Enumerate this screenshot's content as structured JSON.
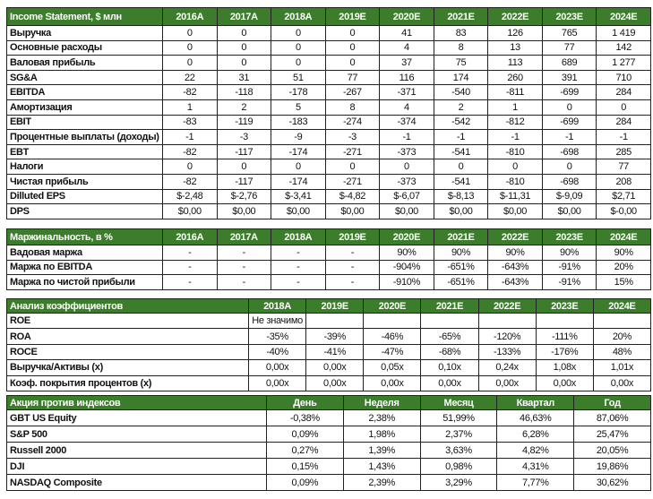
{
  "accent_color": "#3b7d2a",
  "tables": [
    {
      "id": "t1",
      "name": "income-statement-table",
      "label_width": 174,
      "headers": [
        "Income Statement, $ млн",
        "2016A",
        "2017A",
        "2018A",
        "2019E",
        "2020E",
        "2021E",
        "2022E",
        "2023E",
        "2024E"
      ],
      "rows": [
        [
          "Выручка",
          "0",
          "0",
          "0",
          "0",
          "41",
          "83",
          "126",
          "765",
          "1 419"
        ],
        [
          "Основные расходы",
          "0",
          "0",
          "0",
          "0",
          "4",
          "8",
          "13",
          "77",
          "142"
        ],
        [
          "Валовая прибыль",
          "0",
          "0",
          "0",
          "0",
          "37",
          "75",
          "113",
          "689",
          "1 277"
        ],
        [
          "SG&A",
          "22",
          "31",
          "51",
          "77",
          "116",
          "174",
          "260",
          "391",
          "710"
        ],
        [
          "EBITDA",
          "-82",
          "-118",
          "-178",
          "-267",
          "-371",
          "-540",
          "-811",
          "-699",
          "284"
        ],
        [
          "Амортизация",
          "1",
          "2",
          "5",
          "8",
          "4",
          "2",
          "1",
          "0",
          "0"
        ],
        [
          "EBIT",
          "-83",
          "-119",
          "-183",
          "-274",
          "-374",
          "-542",
          "-812",
          "-699",
          "284"
        ],
        [
          "Процентные выплаты (доходы)",
          "-1",
          "-3",
          "-9",
          "-3",
          "-1",
          "-1",
          "-1",
          "-1",
          "-1"
        ],
        [
          "EBT",
          "-82",
          "-117",
          "-174",
          "-271",
          "-373",
          "-541",
          "-810",
          "-698",
          "285"
        ],
        [
          "Налоги",
          "0",
          "0",
          "0",
          "0",
          "0",
          "0",
          "0",
          "0",
          "77"
        ],
        [
          "Чистая прибыль",
          "-82",
          "-117",
          "-174",
          "-271",
          "-373",
          "-541",
          "-810",
          "-698",
          "208"
        ],
        [
          "Dilluted EPS",
          "$-2,48",
          "$-2,76",
          "$-3,41",
          "$-4,82",
          "$-6,07",
          "$-8,13",
          "$-11,31",
          "$-9,09",
          "$2,71"
        ],
        [
          "DPS",
          "$0,00",
          "$0,00",
          "$0,00",
          "$0,00",
          "$0,00",
          "$0,00",
          "$0,00",
          "$0,00",
          "$-0,00"
        ]
      ]
    },
    {
      "id": "t2",
      "name": "margins-table",
      "label_width": 174,
      "headers": [
        "Маржинальность, в %",
        "2016A",
        "2017A",
        "2018A",
        "2019E",
        "2020E",
        "2021E",
        "2022E",
        "2023E",
        "2024E"
      ],
      "rows": [
        [
          "Вадовая маржа",
          "-",
          "-",
          "-",
          "-",
          "90%",
          "90%",
          "90%",
          "90%",
          "90%"
        ],
        [
          "Маржа по EBITDA",
          "-",
          "-",
          "-",
          "-",
          "-904%",
          "-651%",
          "-643%",
          "-91%",
          "20%"
        ],
        [
          "Маржа по чистой прибыли",
          "-",
          "-",
          "-",
          "-",
          "-910%",
          "-651%",
          "-643%",
          "-91%",
          "15%"
        ]
      ]
    },
    {
      "id": "t3",
      "name": "ratios-table",
      "label_width": 270,
      "headers": [
        "Анализ коэффициентов",
        "2018A",
        "2019E",
        "2020E",
        "2021E",
        "2022E",
        "2023E",
        "2024E"
      ],
      "rows": [
        [
          "ROE",
          "Не значимо",
          "",
          "",
          "",
          "",
          "",
          ""
        ],
        [
          "ROA",
          "-35%",
          "-39%",
          "-46%",
          "-65%",
          "-120%",
          "-111%",
          "20%"
        ],
        [
          "ROCE",
          "-40%",
          "-41%",
          "-47%",
          "-68%",
          "-133%",
          "-176%",
          "48%"
        ],
        [
          "Выручка/Активы (x)",
          "0,00x",
          "0,00x",
          "0,05x",
          "0,10x",
          "0,24x",
          "1,08x",
          "1,01x"
        ],
        [
          "Коэф. покрытия процентов (x)",
          "0,00x",
          "0,00x",
          "0,00x",
          "0,00x",
          "0,00x",
          "0,00x",
          "0,00x"
        ]
      ]
    },
    {
      "id": "t4",
      "name": "stock-vs-indices-table",
      "label_width": 290,
      "headers": [
        "Акция против индексов",
        "День",
        "Неделя",
        "Месяц",
        "Квартал",
        "Год"
      ],
      "rows": [
        [
          "GBT US Equity",
          "-0,38%",
          "2,38%",
          "51,99%",
          "46,63%",
          "87,06%"
        ],
        [
          "S&P 500",
          "0,09%",
          "1,98%",
          "2,37%",
          "6,28%",
          "25,47%"
        ],
        [
          "Russell 2000",
          "0,27%",
          "1,39%",
          "3,63%",
          "4,82%",
          "20,05%"
        ],
        [
          "DJI",
          "0,15%",
          "1,43%",
          "0,98%",
          "4,31%",
          "19,86%"
        ],
        [
          "NASDAQ Composite",
          "0,09%",
          "2,39%",
          "3,29%",
          "7,77%",
          "30,62%"
        ]
      ]
    }
  ]
}
